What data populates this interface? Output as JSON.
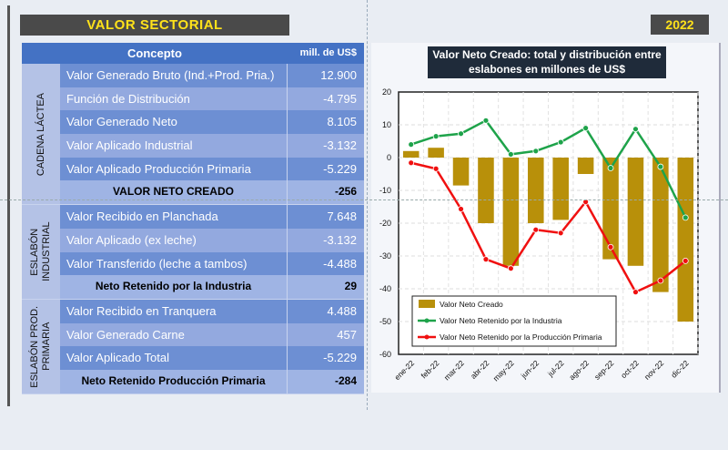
{
  "header": {
    "title": "VALOR  SECTORIAL",
    "year": "2022"
  },
  "table": {
    "col_concept": "Concepto",
    "col_value": "mill. de US$",
    "groups": [
      {
        "label": "CADENA LÁCTEA",
        "rows": [
          {
            "concept": "Valor Generado Bruto (Ind.+Prod. Pria.)",
            "value": "12.900"
          },
          {
            "concept": "Función de Distribución",
            "value": "-4.795"
          },
          {
            "concept": "Valor Generado Neto",
            "value": "8.105"
          },
          {
            "concept": "Valor Aplicado Industrial",
            "value": "-3.132"
          },
          {
            "concept": "Valor Aplicado Producción Primaria",
            "value": "-5.229"
          },
          {
            "concept": "VALOR  NETO  CREADO",
            "value": "-256"
          }
        ]
      },
      {
        "label": "ESLABÓN INDUSTRIAL",
        "rows": [
          {
            "concept": "Valor Recibido en Planchada",
            "value": "7.648"
          },
          {
            "concept": "Valor Aplicado (ex leche)",
            "value": "-3.132"
          },
          {
            "concept": "Valor Transferido (leche a tambos)",
            "value": "-4.488"
          },
          {
            "concept": "Neto Retenido por la Industria",
            "value": "29"
          }
        ]
      },
      {
        "label": "ESLABÓN PROD. PRIMARIA",
        "rows": [
          {
            "concept": "Valor Recibido en Tranquera",
            "value": "4.488"
          },
          {
            "concept": "Valor Generado Carne",
            "value": "457"
          },
          {
            "concept": "Valor Aplicado Total",
            "value": "-5.229"
          },
          {
            "concept": "Neto Retenido Producción Primaria",
            "value": "-284"
          }
        ]
      }
    ]
  },
  "chart_data": {
    "type": "bar+line",
    "title": "Valor Neto Creado: total y distribución entre eslabones en millones de US$",
    "title_lines": [
      "Valor Neto Creado: total y distribución entre",
      "eslabones en millones de US$"
    ],
    "categories": [
      "ene-22",
      "feb-22",
      "mar-22",
      "abr-22",
      "may-22",
      "jun-22",
      "jul-22",
      "ago-22",
      "sep-22",
      "oct-22",
      "nov-22",
      "dic-22"
    ],
    "ylim": [
      -60,
      20
    ],
    "yticks": [
      20,
      10,
      0,
      -10,
      -20,
      -30,
      -40,
      -50,
      -60
    ],
    "grid": true,
    "legend_position": "bottom-left",
    "series": [
      {
        "name": "Valor Neto Creado",
        "kind": "bar",
        "color": "#b8900a",
        "values": [
          2,
          3,
          -8.5,
          -20,
          -33,
          -20,
          -19,
          -5,
          -31,
          -33,
          -41,
          -50
        ]
      },
      {
        "name": "Valor Neto Retenido por la Industria",
        "kind": "line",
        "color": "#1ea34a",
        "values": [
          4,
          6.5,
          7.3,
          11.3,
          1,
          2,
          4.7,
          9,
          -3.2,
          8.7,
          -2.8,
          -18.3
        ]
      },
      {
        "name": "Valor Neto Retenido por la Producción Primaria",
        "kind": "line",
        "color": "#f01010",
        "values": [
          -1.6,
          -3.4,
          -15.7,
          -31,
          -33.8,
          -22,
          -23,
          -13.5,
          -27.3,
          -41,
          -37.5,
          -31.5
        ]
      }
    ]
  }
}
